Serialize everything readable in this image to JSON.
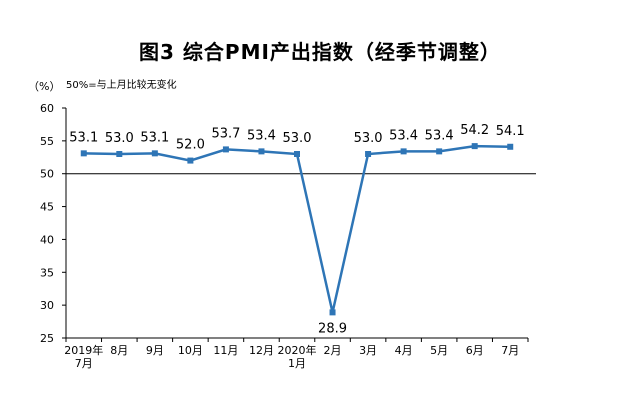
{
  "title": "图3  综合PMI产出指数（经季节调整）",
  "chart_data": {
    "type": "line",
    "ylabel": "（%）",
    "note": "50%=与上月比较无变化",
    "ylim": [
      25,
      60
    ],
    "yticks": [
      25,
      30,
      35,
      40,
      45,
      50,
      55,
      60
    ],
    "reference_line": 50,
    "categories": [
      [
        "2019年",
        "7月"
      ],
      [
        "8月"
      ],
      [
        "9月"
      ],
      [
        "10月"
      ],
      [
        "11月"
      ],
      [
        "12月"
      ],
      [
        "2020年",
        "1月"
      ],
      [
        "2月"
      ],
      [
        "3月"
      ],
      [
        "4月"
      ],
      [
        "5月"
      ],
      [
        "6月"
      ],
      [
        "7月"
      ]
    ],
    "series": [
      {
        "values": [
          53.1,
          53.0,
          53.1,
          52.0,
          53.7,
          53.4,
          53.0,
          28.9,
          53.0,
          53.4,
          53.4,
          54.2,
          54.1
        ],
        "labels": [
          "53.1",
          "53.0",
          "53.1",
          "52.0",
          "53.7",
          "53.4",
          "53.0",
          "28.9",
          "53.0",
          "53.4",
          "53.4",
          "54.2",
          "54.1"
        ],
        "color": "#2e75b6"
      }
    ],
    "grid": false,
    "line_color": "#2e75b6",
    "reference_color": "#000000"
  }
}
